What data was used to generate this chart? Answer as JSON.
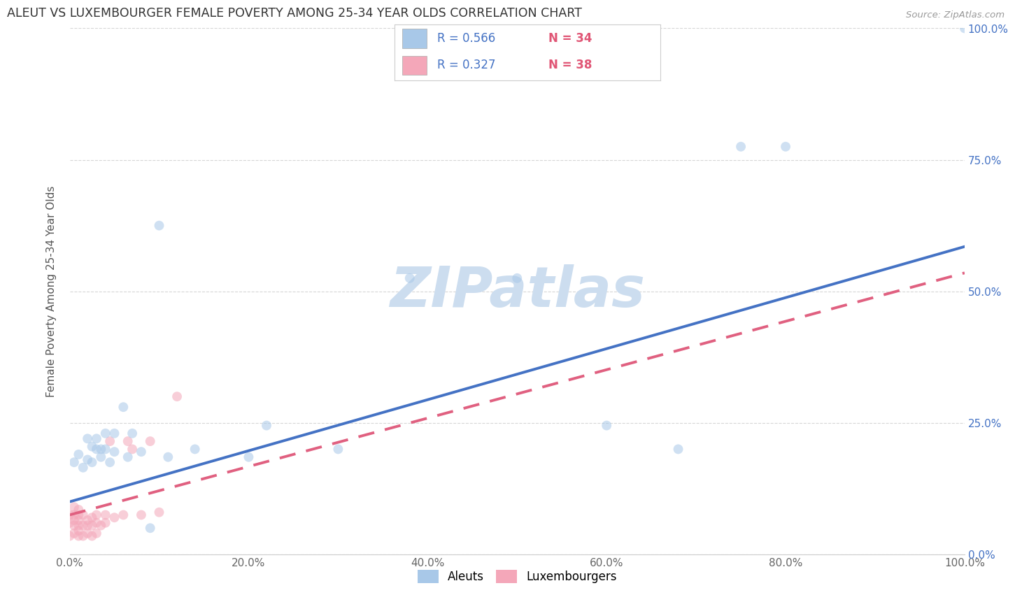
{
  "title": "ALEUT VS LUXEMBOURGER FEMALE POVERTY AMONG 25-34 YEAR OLDS CORRELATION CHART",
  "source": "Source: ZipAtlas.com",
  "ylabel": "Female Poverty Among 25-34 Year Olds",
  "xlim": [
    0,
    1.0
  ],
  "ylim": [
    0,
    1.0
  ],
  "xtick_labels": [
    "0.0%",
    "20.0%",
    "40.0%",
    "60.0%",
    "80.0%",
    "100.0%"
  ],
  "xtick_vals": [
    0.0,
    0.2,
    0.4,
    0.6,
    0.8,
    1.0
  ],
  "ytick_vals": [
    0.0,
    0.25,
    0.5,
    0.75,
    1.0
  ],
  "ytick_labels_right": [
    "0.0%",
    "25.0%",
    "50.0%",
    "75.0%",
    "100.0%"
  ],
  "aleuts_color": "#a8c8e8",
  "aleuts_line_color": "#4472c4",
  "luxembourgers_color": "#f4a7b9",
  "luxembourgers_line_color": "#e06080",
  "R_aleuts": 0.566,
  "N_aleuts": 34,
  "R_luxembourgers": 0.327,
  "N_luxembourgers": 38,
  "watermark": "ZIPatlas",
  "watermark_color": "#ccddef",
  "aleuts_line_x0": 0.0,
  "aleuts_line_y0": 0.1,
  "aleuts_line_x1": 1.0,
  "aleuts_line_y1": 0.585,
  "luxembourgers_line_x0": 0.0,
  "luxembourgers_line_y0": 0.075,
  "luxembourgers_line_x1": 1.0,
  "luxembourgers_line_y1": 0.535,
  "aleuts_x": [
    0.005,
    0.01,
    0.015,
    0.02,
    0.02,
    0.025,
    0.025,
    0.03,
    0.03,
    0.035,
    0.035,
    0.04,
    0.04,
    0.045,
    0.05,
    0.05,
    0.06,
    0.065,
    0.07,
    0.08,
    0.09,
    0.1,
    0.11,
    0.14,
    0.2,
    0.22,
    0.3,
    0.38,
    0.5,
    0.6,
    0.68,
    0.75,
    0.8,
    1.0
  ],
  "aleuts_y": [
    0.175,
    0.19,
    0.165,
    0.18,
    0.22,
    0.175,
    0.205,
    0.2,
    0.22,
    0.185,
    0.2,
    0.2,
    0.23,
    0.175,
    0.195,
    0.23,
    0.28,
    0.185,
    0.23,
    0.195,
    0.05,
    0.625,
    0.185,
    0.2,
    0.185,
    0.245,
    0.2,
    0.525,
    0.525,
    0.245,
    0.2,
    0.775,
    0.775,
    1.0
  ],
  "luxembourgers_x": [
    0.0,
    0.0,
    0.0,
    0.005,
    0.005,
    0.005,
    0.005,
    0.005,
    0.01,
    0.01,
    0.01,
    0.01,
    0.01,
    0.01,
    0.015,
    0.015,
    0.015,
    0.02,
    0.02,
    0.02,
    0.025,
    0.025,
    0.025,
    0.03,
    0.03,
    0.03,
    0.035,
    0.04,
    0.04,
    0.045,
    0.05,
    0.06,
    0.065,
    0.07,
    0.08,
    0.09,
    0.1,
    0.12
  ],
  "luxembourgers_y": [
    0.035,
    0.06,
    0.075,
    0.04,
    0.055,
    0.065,
    0.075,
    0.09,
    0.035,
    0.045,
    0.055,
    0.065,
    0.075,
    0.085,
    0.035,
    0.055,
    0.075,
    0.04,
    0.055,
    0.065,
    0.035,
    0.055,
    0.07,
    0.04,
    0.06,
    0.075,
    0.055,
    0.06,
    0.075,
    0.215,
    0.07,
    0.075,
    0.215,
    0.2,
    0.075,
    0.215,
    0.08,
    0.3
  ],
  "marker_size": 100,
  "marker_alpha": 0.55,
  "line_width": 2.8
}
